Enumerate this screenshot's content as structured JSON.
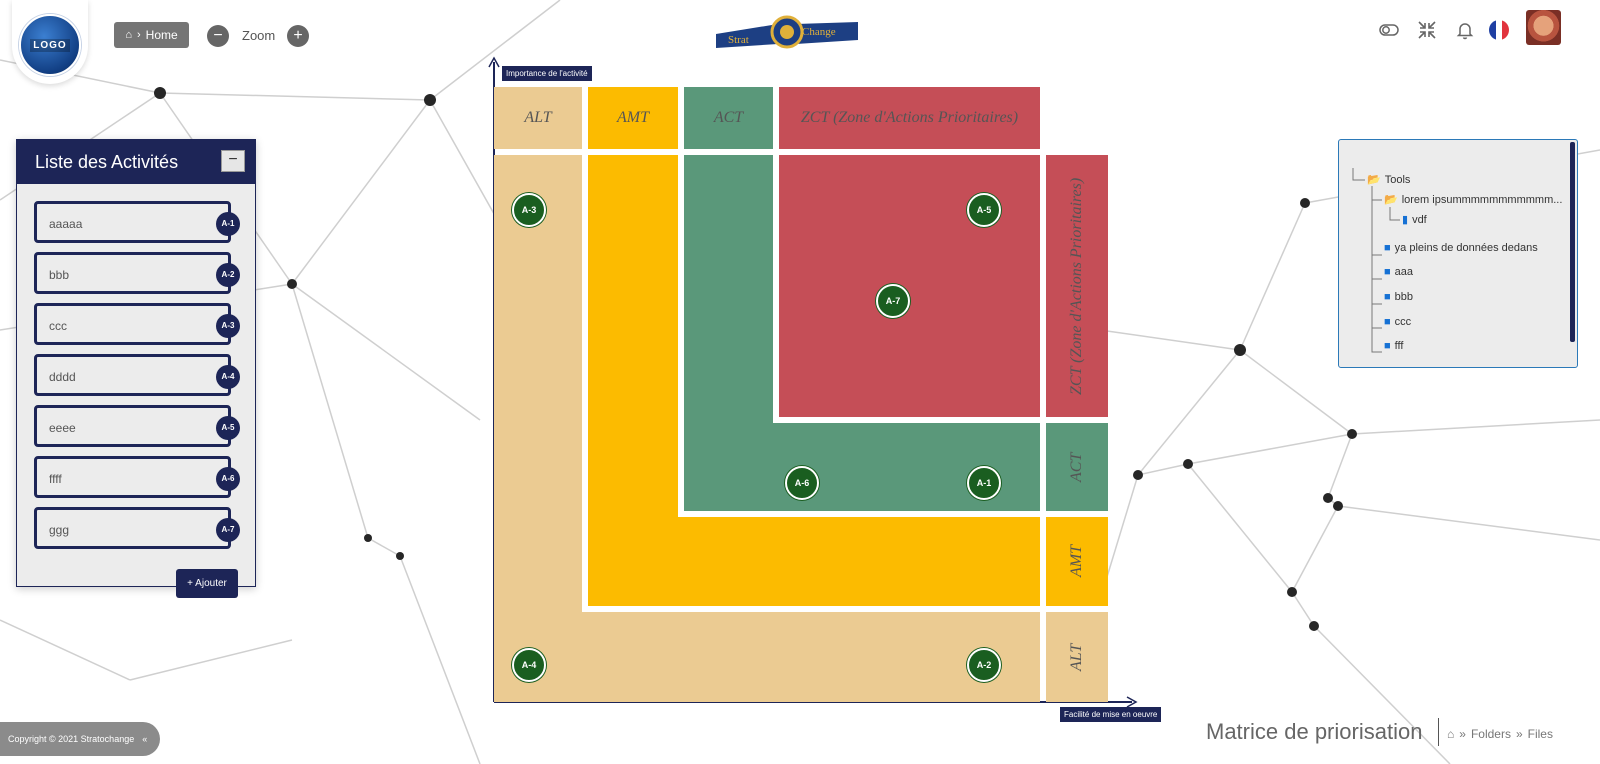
{
  "header": {
    "logo_text": "LOGO",
    "home_label": "Home",
    "zoom_label": "Zoom",
    "zoom_minus": "−",
    "zoom_plus": "+",
    "brand_left": "Strat",
    "brand_right": "Change"
  },
  "activities_panel": {
    "title": "Liste des Activités",
    "collapse_symbol": "−",
    "add_label": "+ Ajouter",
    "items": [
      {
        "label": "aaaaa",
        "badge": "A-1"
      },
      {
        "label": "bbb",
        "badge": "A-2"
      },
      {
        "label": "ccc",
        "badge": "A-3"
      },
      {
        "label": "dddd",
        "badge": "A-4"
      },
      {
        "label": "eeee",
        "badge": "A-5"
      },
      {
        "label": "ffff",
        "badge": "A-6"
      },
      {
        "label": "ggg",
        "badge": "A-7"
      }
    ]
  },
  "matrix": {
    "y_axis_label": "Importance de l'activité",
    "x_axis_label": "Facilité de mise en oeuvre",
    "zones": {
      "alt": "ALT",
      "amt": "AMT",
      "act": "ACT",
      "zct": "ZCT (Zone d'Actions Prioritaires)"
    },
    "colors": {
      "alt": "#ebcb92",
      "amt": "#fcbb00",
      "act": "#5a987a",
      "zct": "#c54e57",
      "marker": "#1a5e20",
      "navy": "#1d2557"
    },
    "markers": [
      "A-1",
      "A-2",
      "A-3",
      "A-4",
      "A-5",
      "A-6",
      "A-7"
    ]
  },
  "tree": {
    "root": "Tools",
    "child": "lorem ipsummmmmmmmmmm...",
    "grandchild": "vdf",
    "items": [
      "ya pleins de données dedans",
      "aaa",
      "bbb",
      "ccc",
      "fff"
    ]
  },
  "footer": {
    "copyright": "Copyright © 2021 Stratochange",
    "collapse_symbol": "«",
    "page_title": "Matrice de priorisation",
    "breadcrumb": [
      "Folders",
      "Files"
    ]
  }
}
